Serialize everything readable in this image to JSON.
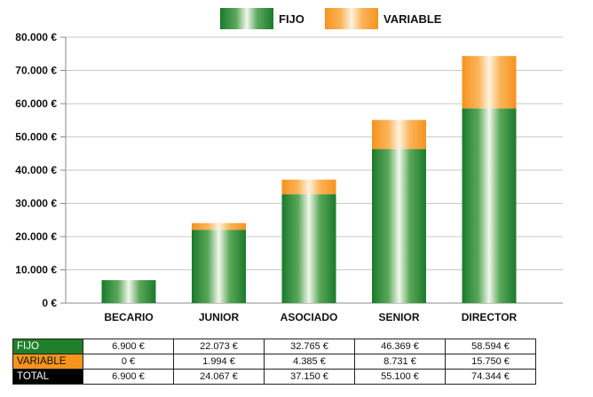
{
  "chart_data": {
    "type": "bar",
    "stacked": true,
    "categories": [
      "BECARIO",
      "JUNIOR",
      "ASOCIADO",
      "SENIOR",
      "DIRECTOR"
    ],
    "series": [
      {
        "name": "FIJO",
        "values": [
          6900,
          22073,
          32765,
          46369,
          58594
        ],
        "color": "#1f7f2a"
      },
      {
        "name": "VARIABLE",
        "values": [
          0,
          1994,
          4385,
          8731,
          15750
        ],
        "color": "#f7941d"
      }
    ],
    "ylim": [
      0,
      80000
    ],
    "yticks": [
      "0 €",
      "10.000 €",
      "20.000 €",
      "30.000 €",
      "40.000 €",
      "50.000 €",
      "60.000 €",
      "70.000 €",
      "80.000 €"
    ],
    "grid": true,
    "legend": "top-center"
  },
  "legend": {
    "fijo": "FIJO",
    "variable": "VARIABLE"
  },
  "table": {
    "rows": [
      {
        "label": "FIJO",
        "values": [
          "6.900 €",
          "22.073 €",
          "32.765 €",
          "46.369 €",
          "58.594 €"
        ]
      },
      {
        "label": "VARIABLE",
        "values": [
          "0 €",
          "1.994 €",
          "4.385 €",
          "8.731 €",
          "15.750 €"
        ]
      },
      {
        "label": "TOTAL",
        "values": [
          "6.900 €",
          "24.067 €",
          "37.150 €",
          "55.100 €",
          "74.344 €"
        ]
      }
    ]
  }
}
